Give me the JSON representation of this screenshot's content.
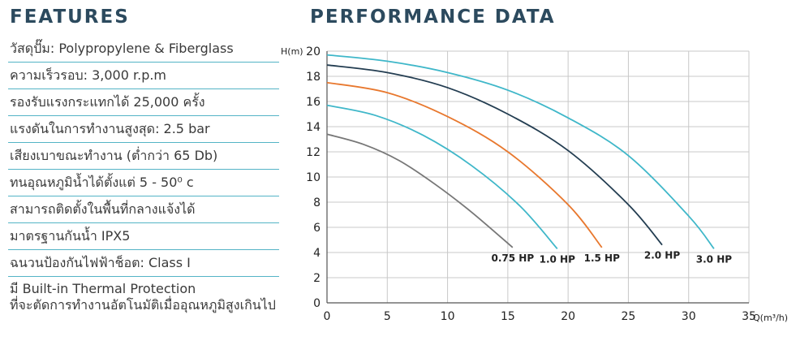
{
  "features": {
    "title": "FEATURES",
    "items": [
      "วัสดุปั๊ม: Polypropylene & Fiberglass",
      "ความเร็วรอบ: 3,000 r.p.m",
      "รองรับแรงกระแทกได้ 25,000 ครั้ง",
      "แรงดันในการทำงานสูงสุด: 2.5 bar",
      "เสียงเบาขณะทำงาน (ต่ำกว่า 65 Db)",
      "ทนอุณหภูมิน้ำได้ตั้งแต่ 5 - 50⁰ c",
      "สามารถติดตั้งในพื้นที่กลางแจ้งได้",
      "มาตรฐานกันน้ำ IPX5",
      "ฉนวนป้องกันไฟฟ้าช็อต:  Class I"
    ],
    "last_item": {
      "line1": "มี Built-in Thermal Protection",
      "line2": "ที่จะตัดการทำงานอัตโนมัติเมื่ออุณหภูมิสูงเกินไป"
    }
  },
  "chart_data": {
    "type": "line",
    "title": "PERFORMANCE DATA",
    "xlabel": "Q(m³/h)",
    "ylabel": "H(m)",
    "xlim": [
      0,
      35
    ],
    "ylim": [
      0,
      20
    ],
    "xticks": [
      0,
      5,
      10,
      15,
      20,
      25,
      30,
      35
    ],
    "yticks": [
      0,
      2,
      4,
      6,
      8,
      10,
      12,
      14,
      16,
      18,
      20
    ],
    "grid": true,
    "series": [
      {
        "name": "0.75 HP",
        "color": "#777777",
        "x": [
          0,
          3,
          6,
          9,
          12,
          15.4
        ],
        "y": [
          13.4,
          12.6,
          11.3,
          9.4,
          7.2,
          4.4
        ]
      },
      {
        "name": "1.0 HP",
        "color": "#3fb7c9",
        "x": [
          0,
          4,
          8,
          12,
          16,
          19.1
        ],
        "y": [
          15.7,
          14.9,
          13.3,
          10.9,
          7.7,
          4.3
        ]
      },
      {
        "name": "1.5 HP",
        "color": "#e8782e",
        "x": [
          0,
          5,
          10,
          15,
          20,
          22.8
        ],
        "y": [
          17.5,
          16.7,
          14.8,
          12,
          7.8,
          4.4
        ]
      },
      {
        "name": "2.0 HP",
        "color": "#233d51",
        "x": [
          0,
          5,
          10,
          15,
          20,
          25,
          27.8
        ],
        "y": [
          18.9,
          18.3,
          17.1,
          15,
          12.1,
          7.8,
          4.6
        ]
      },
      {
        "name": "3.0 HP",
        "color": "#3fb7c9",
        "x": [
          0,
          5,
          10,
          15,
          20,
          25,
          30,
          32.1
        ],
        "y": [
          19.7,
          19.2,
          18.3,
          16.9,
          14.7,
          11.7,
          6.9,
          4.3
        ]
      }
    ]
  }
}
